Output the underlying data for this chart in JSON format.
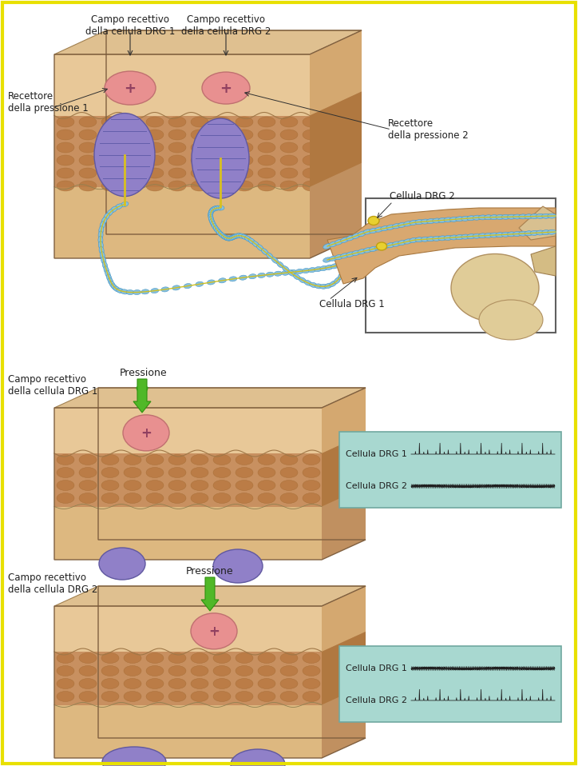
{
  "bg_color": "#ffffff",
  "border_color": "#e8e000",
  "skin_light": "#e8c898",
  "skin_mid": "#d4a870",
  "skin_granular": "#c8906050",
  "skin_deep": "#d8b888",
  "skin_right": "#c8a060",
  "receptor_pink": "#e89090",
  "receptor_border": "#d07070",
  "corpuscle_purple": "#8878b8",
  "corpuscle_dark": "#6860a0",
  "nerve_blue": "#88c0e0",
  "nerve_dark_blue": "#4898c0",
  "nerve_yellow": "#e0c820",
  "signal_box": "#a8d8d0",
  "signal_border": "#70a8a0",
  "arrow_green_light": "#80c840",
  "arrow_green_dark": "#40a020",
  "bone_light": "#e0cca8",
  "bone_mid": "#d4b888",
  "bone_dark": "#b89860",
  "nerve_sheath": "#d8a870",
  "labels": {
    "campo1": "Campo recettivo\ndella cellula DRG 1",
    "campo2": "Campo recettivo\ndella cellula DRG 2",
    "recettore1": "Recettore\ndella pressione 1",
    "recettore2": "Recettore\ndella pressione 2",
    "cellula_drg1": "Cellula DRG 1",
    "cellula_drg2": "Cellula DRG 2",
    "pressione": "Pressione",
    "campo_rec1": "Campo recettivo\ndella cellula DRG 1",
    "campo_rec2": "Campo recettivo\ndella cellula DRG 2",
    "drg1": "Cellula DRG 1",
    "drg2": "Cellula DRG 2"
  }
}
